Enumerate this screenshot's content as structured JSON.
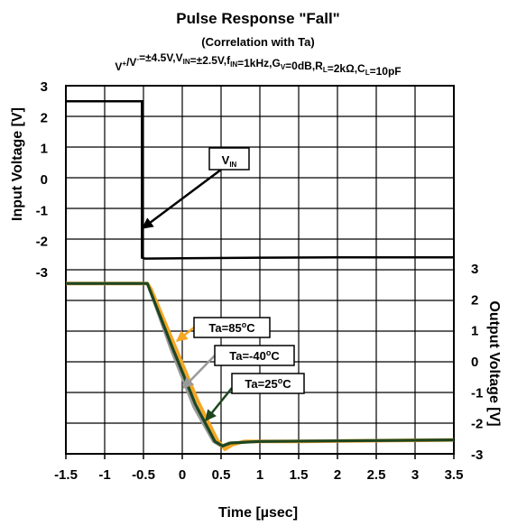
{
  "chart_data": {
    "type": "line",
    "title": "Pulse Response \"Fall\"",
    "subtitle": "(Correlation with Ta)",
    "conditions": {
      "parts": [
        {
          "t": "V"
        },
        {
          "t": "+",
          "sup": true
        },
        {
          "t": "/V"
        },
        {
          "t": "-",
          "sup": true
        },
        {
          "t": "=±4.5V,V"
        },
        {
          "t": "IN",
          "sub": true
        },
        {
          "t": "=±2.5V,f"
        },
        {
          "t": "IN",
          "sub": true
        },
        {
          "t": "=1kHz,G"
        },
        {
          "t": "V",
          "sub": true
        },
        {
          "t": "=0dB,R"
        },
        {
          "t": "L",
          "sub": true
        },
        {
          "t": "=2kΩ,C"
        },
        {
          "t": "L",
          "sub": true
        },
        {
          "t": "=10pF"
        }
      ]
    },
    "xlabel": "Time [µsec]",
    "ylabel_left": "Input Voltage [V]",
    "ylabel_right": "Output Voltage [V]",
    "xlim": [
      -1.5,
      3.5
    ],
    "x_ticks": [
      "-1.5",
      "-1",
      "-0.5",
      "0",
      "0.5",
      "1",
      "1.5",
      "2",
      "2.5",
      "3",
      "3.5"
    ],
    "y_left_ticks": [
      "3",
      "2",
      "1",
      "0",
      "-1",
      "-2",
      "-3"
    ],
    "y_right_ticks": [
      "3",
      "2",
      "1",
      "0",
      "-1",
      "-2",
      "-3"
    ],
    "grid": true,
    "input_series": {
      "name": "VIN",
      "color": "#000000",
      "points": [
        [
          -1.5,
          2.5
        ],
        [
          -0.52,
          2.5
        ],
        [
          -0.52,
          -2.55
        ],
        [
          -0.48,
          -2.58
        ],
        [
          0.0,
          -2.57
        ],
        [
          1.0,
          -2.55
        ],
        [
          2.0,
          -2.54
        ],
        [
          3.5,
          -2.54
        ]
      ]
    },
    "output_series": [
      {
        "name": "Ta=85°C",
        "color": "#F5A623",
        "points": [
          [
            -1.5,
            2.5
          ],
          [
            -0.45,
            2.5
          ],
          [
            -0.4,
            2.3
          ],
          [
            -0.1,
            0.5
          ],
          [
            0.2,
            -1.3
          ],
          [
            0.45,
            -2.55
          ],
          [
            0.55,
            -2.85
          ],
          [
            0.65,
            -2.7
          ],
          [
            0.8,
            -2.6
          ],
          [
            1.5,
            -2.6
          ],
          [
            3.5,
            -2.55
          ]
        ]
      },
      {
        "name": "Ta=-40°C",
        "color": "#9A9A9A",
        "points": [
          [
            -1.5,
            2.5
          ],
          [
            -0.45,
            2.5
          ],
          [
            -0.42,
            2.3
          ],
          [
            -0.15,
            0.4
          ],
          [
            0.15,
            -1.5
          ],
          [
            0.4,
            -2.6
          ],
          [
            0.5,
            -2.75
          ],
          [
            0.6,
            -2.65
          ],
          [
            1.0,
            -2.6
          ],
          [
            3.5,
            -2.55
          ]
        ]
      },
      {
        "name": "Ta=25°C",
        "color": "#1E4620",
        "points": [
          [
            -1.5,
            2.5
          ],
          [
            -0.45,
            2.5
          ],
          [
            -0.42,
            2.3
          ],
          [
            -0.13,
            0.45
          ],
          [
            0.17,
            -1.4
          ],
          [
            0.42,
            -2.6
          ],
          [
            0.52,
            -2.75
          ],
          [
            0.62,
            -2.65
          ],
          [
            1.0,
            -2.6
          ],
          [
            3.5,
            -2.55
          ]
        ]
      }
    ],
    "annotations": [
      {
        "label": "V",
        "sub": "IN",
        "color": "#000000"
      },
      {
        "label": "Ta=85",
        "deg": "o",
        "suffix": "C",
        "color": "#F5A623"
      },
      {
        "label": "Ta=-40",
        "deg": "o",
        "suffix": "C",
        "color": "#9A9A9A"
      },
      {
        "label": "Ta=25",
        "deg": "o",
        "suffix": "C",
        "color": "#1E4620"
      }
    ]
  }
}
